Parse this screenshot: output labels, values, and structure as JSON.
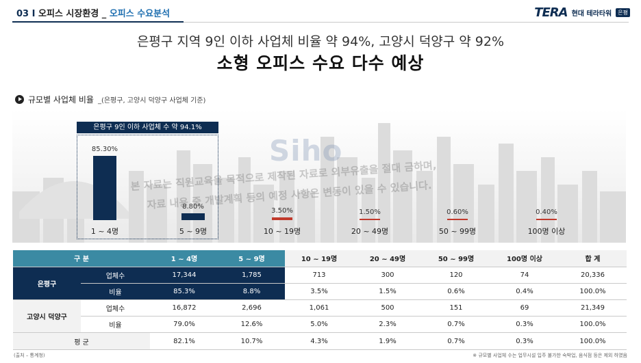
{
  "header": {
    "section": "03 I",
    "title": "오피스 시장환경 _ ",
    "subtitle": "오피스 수요분석",
    "logo_mark": "TERA",
    "logo_text": "현대 테라타워",
    "logo_badge": "은평"
  },
  "headline": {
    "line1": "은평구 지역 9인 이하 사업체 비율 약 94%, 고양시 덕양구 약 92%",
    "line2": "소형 오피스 수요 다수 예상"
  },
  "section_label": {
    "main": "규모별 사업체 비율",
    "sub": "_(은평구, 고양시 덕양구 사업체 기준)"
  },
  "watermark": {
    "logo": "Siho",
    "line1": "본 자료는 직원교육을 목적으로 제작된 자료로 외부유출을 절대 금하며,",
    "line2": "자료 내용 중 개발계획 등의 예정 사항은 변동이 있을 수 있습니다."
  },
  "chart_data": {
    "type": "bar",
    "categories": [
      "1 ~ 4명",
      "5 ~ 9명",
      "10 ~ 19명",
      "20 ~ 49명",
      "50 ~ 99명",
      "100명 이상"
    ],
    "values": [
      85.3,
      8.8,
      3.5,
      1.5,
      0.6,
      0.4
    ],
    "value_labels": [
      "85.30%",
      "8.80%",
      "3.50%",
      "1.50%",
      "0.60%",
      "0.40%"
    ],
    "highlight_label": "은평구 9인 이하 사업체 수 약 94.1%",
    "ylim": [
      0,
      100
    ],
    "colors": {
      "highlight": "#0e2d52",
      "other": "#c0392b"
    }
  },
  "table": {
    "headers": [
      "구 분",
      "1 ~ 4명",
      "5 ~ 9명",
      "10 ~ 19명",
      "20 ~ 49명",
      "50 ~ 99명",
      "100명 이상",
      "합 계"
    ],
    "groups": [
      {
        "name": "은평구",
        "rows": [
          {
            "label": "업체수",
            "values": [
              "17,344",
              "1,785",
              "713",
              "300",
              "120",
              "74",
              "20,336"
            ]
          },
          {
            "label": "비율",
            "values": [
              "85.3%",
              "8.8%",
              "3.5%",
              "1.5%",
              "0.6%",
              "0.4%",
              "100.0%"
            ]
          }
        ]
      },
      {
        "name": "고양시 덕양구",
        "rows": [
          {
            "label": "업체수",
            "values": [
              "16,872",
              "2,696",
              "1,061",
              "500",
              "151",
              "69",
              "21,349"
            ]
          },
          {
            "label": "비율",
            "values": [
              "79.0%",
              "12.6%",
              "5.0%",
              "2.3%",
              "0.7%",
              "0.3%",
              "100.0%"
            ]
          }
        ]
      }
    ],
    "average": {
      "label": "평 균",
      "values": [
        "82.1%",
        "10.7%",
        "4.3%",
        "1.9%",
        "0.7%",
        "0.3%",
        "100.0%"
      ]
    }
  },
  "footer": {
    "source": "(출처 – 통계청)",
    "note": "※ 규모별 사업체 수는 업무시설 입주 불가한 숙박업, 음식점 등은 제외 하였음"
  },
  "colors": {
    "navy": "#0e2d52",
    "teal": "#3b8aa3",
    "red": "#c0392b"
  }
}
